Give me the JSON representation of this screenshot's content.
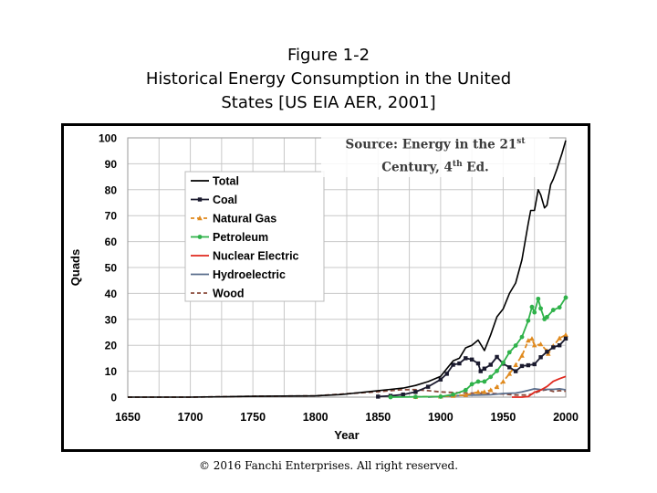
{
  "figure": {
    "line1": "Figure 1‑2",
    "line2": "Historical Energy Consumption in the United",
    "line3": "States [US EIA AER, 2001]"
  },
  "source_note": {
    "part1": "Source: Energy in the 21",
    "sup1": "st",
    "part2": "Century, 4",
    "sup2": "th",
    "part3": " Ed."
  },
  "copyright": "© 2016 Fanchi Enterprises. All right reserved.",
  "colors": {
    "total": "#000000",
    "coal": "#1a1a2e",
    "natural_gas": "#e08a1e",
    "petroleum": "#2fb24a",
    "nuclear": "#e0281e",
    "hydro": "#5a6e8c",
    "wood": "#8a4a3a",
    "grid": "#c8c8c8"
  },
  "chart_data": {
    "type": "line",
    "title": "Historical Energy Consumption in the United States [US EIA AER, 2001]",
    "xlabel": "Year",
    "ylabel": "Quads",
    "xlim": [
      1650,
      2000
    ],
    "ylim": [
      0,
      100
    ],
    "xticks": [
      "1650",
      "1700",
      "1750",
      "1800",
      "1850",
      "1900",
      "1950",
      "2000"
    ],
    "yticks": [
      "0",
      "10",
      "20",
      "30",
      "40",
      "50",
      "60",
      "70",
      "80",
      "90",
      "100"
    ],
    "legend_position": "top-left",
    "series": [
      {
        "name": "Total",
        "key": "total",
        "marker": "none",
        "dash": "solid",
        "x": [
          1650,
          1700,
          1750,
          1800,
          1820,
          1850,
          1860,
          1870,
          1880,
          1890,
          1900,
          1905,
          1910,
          1915,
          1920,
          1925,
          1930,
          1935,
          1940,
          1945,
          1950,
          1955,
          1960,
          1965,
          1970,
          1972,
          1975,
          1978,
          1980,
          1983,
          1985,
          1988,
          1990,
          1993,
          1995,
          1997,
          2000
        ],
        "y": [
          0,
          0,
          0.3,
          0.5,
          1,
          2.5,
          3,
          3.5,
          4.5,
          6,
          8,
          11,
          14,
          15,
          19,
          20,
          22,
          18,
          24,
          31,
          34,
          40,
          44,
          53,
          67,
          72,
          72,
          80,
          78,
          73,
          74,
          82,
          84,
          88,
          91,
          94,
          99
        ]
      },
      {
        "name": "Coal",
        "key": "coal",
        "marker": "square",
        "dash": "solid",
        "x": [
          1850,
          1860,
          1870,
          1880,
          1890,
          1900,
          1905,
          1910,
          1915,
          1920,
          1925,
          1930,
          1932,
          1935,
          1940,
          1945,
          1950,
          1955,
          1960,
          1965,
          1970,
          1975,
          1980,
          1985,
          1990,
          1995,
          2000
        ],
        "y": [
          0.2,
          0.5,
          1,
          2,
          4,
          6.8,
          9,
          12.5,
          13,
          15,
          14.5,
          13,
          10,
          11,
          12.5,
          15.5,
          12.9,
          11.5,
          10,
          12,
          12.3,
          12.7,
          15.4,
          17.5,
          19.2,
          20,
          22.6
        ]
      },
      {
        "name": "Natural Gas",
        "key": "natural_gas",
        "marker": "triangle",
        "dash": "dashed",
        "x": [
          1880,
          1900,
          1910,
          1920,
          1930,
          1935,
          1940,
          1945,
          1950,
          1955,
          1960,
          1965,
          1970,
          1973,
          1975,
          1980,
          1985,
          1986,
          1990,
          1995,
          2000
        ],
        "y": [
          0.1,
          0.25,
          0.5,
          0.8,
          2,
          2,
          2.7,
          3.9,
          6,
          9,
          12.4,
          16,
          21.8,
          22.5,
          20,
          20.4,
          17.8,
          16.7,
          19.7,
          22.7,
          24
        ]
      },
      {
        "name": "Petroleum",
        "key": "petroleum",
        "marker": "circle",
        "dash": "solid",
        "x": [
          1860,
          1880,
          1900,
          1910,
          1920,
          1925,
          1930,
          1935,
          1940,
          1945,
          1950,
          1955,
          1960,
          1965,
          1970,
          1973,
          1975,
          1978,
          1980,
          1983,
          1985,
          1990,
          1995,
          2000
        ],
        "y": [
          0,
          0.1,
          0.2,
          1,
          2.7,
          5,
          6,
          6,
          7.8,
          10.1,
          13.3,
          17.3,
          19.9,
          23.2,
          29.5,
          34.8,
          32.7,
          37.9,
          34.2,
          30.1,
          30.9,
          33.6,
          34.6,
          38.4
        ]
      },
      {
        "name": "Nuclear Electric",
        "key": "nuclear",
        "marker": "none",
        "dash": "solid",
        "x": [
          1957,
          1960,
          1965,
          1970,
          1975,
          1980,
          1985,
          1990,
          1995,
          2000
        ],
        "y": [
          0,
          0,
          0,
          0.2,
          1.9,
          2.7,
          4.1,
          6.1,
          7.1,
          8
        ]
      },
      {
        "name": "Hydroelectric",
        "key": "hydro",
        "marker": "none",
        "dash": "solid",
        "x": [
          1890,
          1900,
          1910,
          1920,
          1930,
          1940,
          1950,
          1960,
          1965,
          1970,
          1975,
          1980,
          1985,
          1990,
          1995,
          2000
        ],
        "y": [
          0,
          0.25,
          0.5,
          0.75,
          0.8,
          0.9,
          1.4,
          1.6,
          2,
          2.6,
          3.2,
          2.9,
          3,
          3,
          3.2,
          2.8
        ]
      },
      {
        "name": "Wood",
        "key": "wood",
        "marker": "none",
        "dash": "dashed",
        "x": [
          1650,
          1700,
          1750,
          1800,
          1850,
          1870,
          1880,
          1890,
          1900,
          1920,
          1940,
          1950,
          1960,
          1970,
          1975,
          1980,
          1985,
          1990,
          1995,
          2000
        ],
        "y": [
          0,
          0,
          0.3,
          0.5,
          2.1,
          2.9,
          2.9,
          2.5,
          2,
          1.6,
          1.4,
          1.2,
          0.8,
          0.8,
          1.5,
          2.5,
          2.9,
          2.2,
          2.5,
          2.3
        ]
      }
    ]
  }
}
